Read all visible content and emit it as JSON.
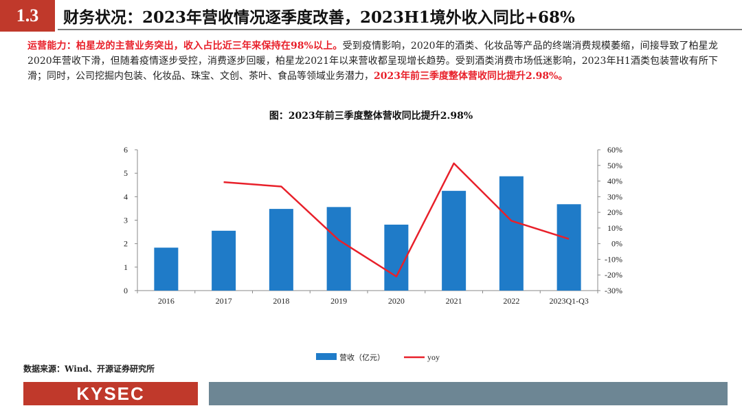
{
  "header": {
    "section_number": "1.3",
    "title": "财务状况：2023年营收情况逐季度改善，2023H1境外收入同比+68%"
  },
  "paragraph": {
    "red_lead": "运营能力：柏星龙的主营业务突出，收入占比近三年来保持在98%以上。",
    "body": "受到疫情影响，2020年的酒类、化妆品等产品的终端消费规模萎缩，间接导致了柏星龙2020年营收下滑，但随着疫情逐步受控，消费逐步回暖，柏星龙2021年以来营收都呈现增长趋势。受到酒类消费市场低迷影响，2023年H1酒类包装营收有所下滑；同时，公司挖掘内包装、化妆品、珠宝、文创、茶叶、食品等领域业务潜力，",
    "red_tail": "2023年前三季度整体营收同比提升2.98%。"
  },
  "chart_data": {
    "type": "bar",
    "title": "图：2023年前三季度整体营收同比提升2.98%",
    "categories": [
      "2016",
      "2017",
      "2018",
      "2019",
      "2020",
      "2021",
      "2022",
      "2023Q1-Q3"
    ],
    "series": [
      {
        "name": "营收（亿元）",
        "type": "bar",
        "axis": "left",
        "color": "#1f7bc8",
        "values": [
          1.83,
          2.55,
          3.48,
          3.56,
          2.81,
          4.25,
          4.87,
          3.68
        ]
      },
      {
        "name": "yoy",
        "type": "line",
        "axis": "right",
        "color": "#e8202a",
        "values": [
          null,
          0.393,
          0.365,
          0.023,
          -0.21,
          0.513,
          0.146,
          0.03
        ]
      }
    ],
    "ylim_left": [
      0,
      6
    ],
    "left_ticks": [
      "0",
      "1",
      "2",
      "3",
      "4",
      "5",
      "6"
    ],
    "ylim_right": [
      -0.3,
      0.6
    ],
    "right_ticks": [
      "-30%",
      "-20%",
      "-10%",
      "0%",
      "10%",
      "20%",
      "30%",
      "40%",
      "50%",
      "60%"
    ],
    "legend_position": "bottom",
    "grid": false
  },
  "footer": {
    "source": "数据来源：Wind、开源证券研究所",
    "logo": "KYSEC"
  },
  "colors": {
    "accent": "#c0392b",
    "bar": "#1f7bc8",
    "line": "#e8202a",
    "footer_bar": "#6d8694"
  }
}
